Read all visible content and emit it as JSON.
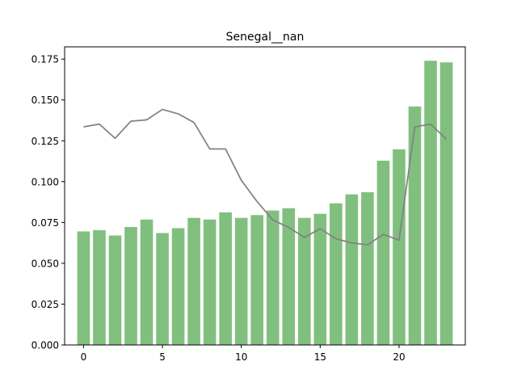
{
  "chart_data": {
    "type": "bar",
    "title": "Senegal__nan",
    "xlabel": "",
    "ylabel": "",
    "x": [
      0,
      1,
      2,
      3,
      4,
      5,
      6,
      7,
      8,
      9,
      10,
      11,
      12,
      13,
      14,
      15,
      16,
      17,
      18,
      19,
      20,
      21,
      22,
      23
    ],
    "xlim": [
      -1.2,
      24.2
    ],
    "ylim": [
      0,
      0.1825
    ],
    "xticks": [
      0,
      5,
      10,
      15,
      20
    ],
    "xtick_labels": [
      "0",
      "5",
      "10",
      "15",
      "20"
    ],
    "yticks": [
      0,
      0.025,
      0.05,
      0.075,
      0.1,
      0.125,
      0.15,
      0.175
    ],
    "ytick_labels": [
      "0.000",
      "0.025",
      "0.050",
      "0.075",
      "0.100",
      "0.125",
      "0.150",
      "0.175"
    ],
    "grid": false,
    "series": [
      {
        "kind": "bar",
        "color": "#81bf7f",
        "values": [
          0.0695,
          0.0703,
          0.067,
          0.0722,
          0.0768,
          0.0685,
          0.0715,
          0.0778,
          0.0768,
          0.0812,
          0.0778,
          0.0795,
          0.0823,
          0.0837,
          0.0778,
          0.0803,
          0.0867,
          0.0922,
          0.0935,
          0.1128,
          0.1198,
          0.146,
          0.174,
          0.173
        ]
      },
      {
        "kind": "line",
        "color": "#808080",
        "values": [
          0.1335,
          0.1352,
          0.1265,
          0.137,
          0.1378,
          0.1442,
          0.1415,
          0.1362,
          0.12,
          0.12,
          0.1008,
          0.0878,
          0.0765,
          0.072,
          0.0658,
          0.0712,
          0.065,
          0.0625,
          0.0613,
          0.0677,
          0.0642,
          0.1335,
          0.1352,
          0.126
        ]
      }
    ]
  }
}
